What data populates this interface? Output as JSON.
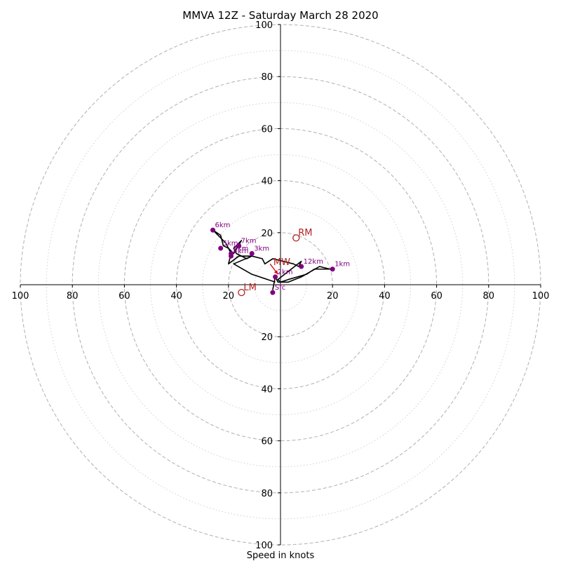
{
  "chart_data": {
    "type": "scatter",
    "title": "MMVA 12Z - Saturday March 28 2020",
    "xlabel": "Speed in knots",
    "ylabel": "",
    "xlim": [
      -100,
      100
    ],
    "ylim": [
      -100,
      100
    ],
    "rings": {
      "major": [
        20,
        40,
        60,
        80,
        100
      ],
      "minor": [
        10,
        30,
        50,
        70,
        90
      ]
    },
    "x_tick_labels": [
      "100",
      "80",
      "60",
      "40",
      "20",
      "20",
      "40",
      "60",
      "80",
      "100"
    ],
    "y_tick_labels": [
      "100",
      "80",
      "60",
      "40",
      "20",
      "20",
      "40",
      "60",
      "80",
      "100"
    ],
    "trace": [
      [
        -3,
        -2
      ],
      [
        -2,
        3
      ],
      [
        -1,
        1
      ],
      [
        3,
        1
      ],
      [
        8,
        3
      ],
      [
        15,
        7
      ],
      [
        19,
        6
      ],
      [
        13,
        6
      ],
      [
        10,
        4
      ],
      [
        3,
        2
      ],
      [
        0,
        1
      ],
      [
        -1,
        2
      ],
      [
        8,
        9
      ],
      [
        7,
        7
      ],
      [
        5,
        8
      ],
      [
        -3,
        10
      ],
      [
        -6,
        8
      ],
      [
        -7,
        10
      ],
      [
        -11,
        11
      ],
      [
        -13,
        10
      ],
      [
        -17,
        12
      ],
      [
        -18,
        14
      ],
      [
        -15,
        17
      ],
      [
        -18,
        12
      ],
      [
        -20,
        14
      ],
      [
        -22,
        15
      ],
      [
        -23,
        19
      ],
      [
        -26,
        21
      ],
      [
        -21,
        16
      ],
      [
        -19,
        12
      ],
      [
        -20,
        8
      ],
      [
        -16,
        11
      ],
      [
        -11,
        11
      ],
      [
        -18,
        8
      ],
      [
        -11,
        4
      ],
      [
        -2,
        1
      ]
    ],
    "height_points": [
      {
        "label": "Sfc",
        "x": -3,
        "y": -3
      },
      {
        "label": "1km",
        "x": 20,
        "y": 6
      },
      {
        "label": "2km",
        "x": -2,
        "y": 3
      },
      {
        "label": "3km",
        "x": -11,
        "y": 12
      },
      {
        "label": "4km",
        "x": -19,
        "y": 11
      },
      {
        "label": "5km",
        "x": -23,
        "y": 14
      },
      {
        "label": "6km",
        "x": -26,
        "y": 21
      },
      {
        "label": "7km",
        "x": -16,
        "y": 15
      },
      {
        "label": "8km",
        "x": -19,
        "y": 12
      },
      {
        "label": "12km",
        "x": 8,
        "y": 7
      }
    ],
    "motion_points": [
      {
        "label": "RM",
        "x": 6,
        "y": 18
      },
      {
        "label": "LM",
        "x": -15,
        "y": -3
      }
    ],
    "mean_wind": {
      "label": "MW",
      "x": -3,
      "y": 7
    },
    "mean_wind_arrow_tail": [
      -4,
      8
    ],
    "mean_wind_arrow_head": [
      -1,
      4
    ],
    "colors": {
      "trace": "#000000",
      "height_points": "#800080",
      "motion": "#b22222",
      "grid": "#b0b0b0",
      "axes": "#000000"
    }
  }
}
